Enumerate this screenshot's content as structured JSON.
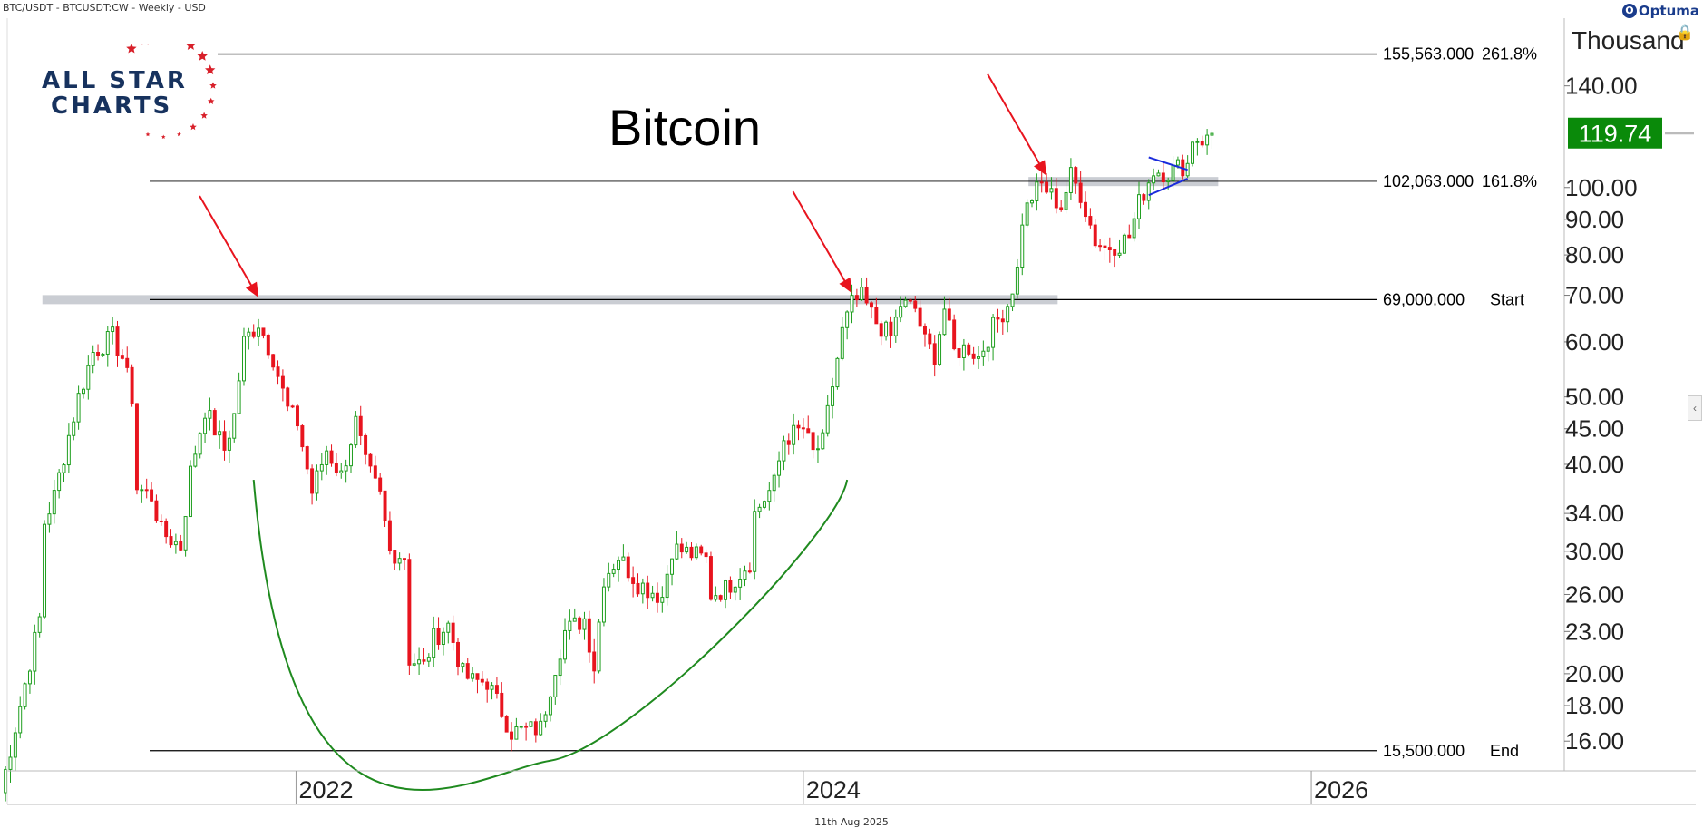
{
  "header": {
    "symbol_line": "BTC/USDT - BTCUSDT:CW - Weekly - USD"
  },
  "brand": {
    "name": "Optuma"
  },
  "footer": {
    "date": "11th Aug 2025"
  },
  "logo": {
    "line1": "ALL STAR",
    "line2": "CHARTS",
    "star_color": "#d8202a",
    "text_color": "#17325e"
  },
  "colors": {
    "up": "#1e9e1e",
    "down": "#e8141e",
    "price_box": "#0a8a0a",
    "arc": "#1f8a1f",
    "arrow": "#e8141e",
    "triangle": "#1a2bdc",
    "zone": "#b8bcc4"
  },
  "chart_data": {
    "type": "candlestick",
    "title": "Bitcoin",
    "scale": "log",
    "ylim": [
      14.5,
      170
    ],
    "y_unit_label": "Thousand",
    "yticks": [
      "140.00",
      "100.00",
      "90.00",
      "80.00",
      "70.00",
      "60.00",
      "50.00",
      "45.00",
      "40.00",
      "34.00",
      "30.00",
      "26.00",
      "23.00",
      "20.00",
      "18.00",
      "16.00"
    ],
    "xticks": [
      "2022",
      "2024",
      "2026"
    ],
    "xlim": [
      "2020-11-01",
      "2026-12-31"
    ],
    "last_price": "119.74",
    "levels": [
      {
        "value": 155.563,
        "price_label": "155,563.000",
        "label": "261.8%"
      },
      {
        "value": 102.063,
        "price_label": "102,063.000",
        "label": "161.8%"
      },
      {
        "value": 69.0,
        "price_label": "69,000.000",
        "label": "Start"
      },
      {
        "value": 15.5,
        "price_label": "15,500.000",
        "label": "End"
      }
    ],
    "resistance_zones": [
      {
        "from": "2021-01-01",
        "to": "2025-01-01",
        "value": 69.0
      },
      {
        "from": "2024-11-20",
        "to": "2025-08-20",
        "value": 102.0
      }
    ],
    "annotations": [
      {
        "type": "arrow",
        "x": "2021-11-08",
        "y": 69.5
      },
      {
        "type": "arrow",
        "x": "2024-03-11",
        "y": 70.5
      },
      {
        "type": "arrow",
        "x": "2024-12-16",
        "y": 104.0
      }
    ],
    "anchors": [
      [
        "2020-11-02",
        13.5
      ],
      [
        "2020-12-28",
        24
      ],
      [
        "2021-01-04",
        33
      ],
      [
        "2021-01-18",
        36
      ],
      [
        "2021-02-08",
        44
      ],
      [
        "2021-02-22",
        50
      ],
      [
        "2021-03-15",
        58
      ],
      [
        "2021-04-12",
        61
      ],
      [
        "2021-04-26",
        57
      ],
      [
        "2021-05-10",
        50
      ],
      [
        "2021-05-17",
        37
      ],
      [
        "2021-06-07",
        36
      ],
      [
        "2021-06-21",
        32
      ],
      [
        "2021-07-19",
        30.5
      ],
      [
        "2021-08-02",
        39
      ],
      [
        "2021-08-23",
        48
      ],
      [
        "2021-09-20",
        42
      ],
      [
        "2021-10-04",
        47
      ],
      [
        "2021-10-18",
        60
      ],
      [
        "2021-11-08",
        64
      ],
      [
        "2021-11-29",
        57
      ],
      [
        "2021-12-20",
        48
      ],
      [
        "2022-01-03",
        46
      ],
      [
        "2022-01-24",
        36.5
      ],
      [
        "2022-02-14",
        42
      ],
      [
        "2022-03-07",
        38.5
      ],
      [
        "2022-03-28",
        46
      ],
      [
        "2022-04-11",
        40
      ],
      [
        "2022-05-02",
        36
      ],
      [
        "2022-05-16",
        30
      ],
      [
        "2022-06-06",
        29.5
      ],
      [
        "2022-06-13",
        21
      ],
      [
        "2022-07-04",
        20.5
      ],
      [
        "2022-07-18",
        22.5
      ],
      [
        "2022-08-08",
        23.5
      ],
      [
        "2022-08-29",
        20
      ],
      [
        "2022-09-12",
        19.5
      ],
      [
        "2022-10-03",
        19.5
      ],
      [
        "2022-11-07",
        16.5
      ],
      [
        "2022-12-19",
        16.7
      ],
      [
        "2023-01-09",
        20.5
      ],
      [
        "2023-01-23",
        23
      ],
      [
        "2023-02-20",
        24
      ],
      [
        "2023-03-06",
        20.5
      ],
      [
        "2023-03-20",
        27.5
      ],
      [
        "2023-04-10",
        29.5
      ],
      [
        "2023-05-08",
        27
      ],
      [
        "2023-06-12",
        25.8
      ],
      [
        "2023-06-26",
        30.3
      ],
      [
        "2023-07-17",
        29.9
      ],
      [
        "2023-08-14",
        29.2
      ],
      [
        "2023-08-21",
        26
      ],
      [
        "2023-09-11",
        26.5
      ],
      [
        "2023-10-16",
        29
      ],
      [
        "2023-10-23",
        34
      ],
      [
        "2023-11-20",
        37.5
      ],
      [
        "2023-12-04",
        43.5
      ],
      [
        "2024-01-01",
        45
      ],
      [
        "2024-01-15",
        41.5
      ],
      [
        "2024-01-29",
        43
      ],
      [
        "2024-02-12",
        52
      ],
      [
        "2024-02-26",
        62
      ],
      [
        "2024-03-11",
        68
      ],
      [
        "2024-03-25",
        69.5
      ],
      [
        "2024-04-15",
        64
      ],
      [
        "2024-05-06",
        61
      ],
      [
        "2024-05-20",
        68
      ],
      [
        "2024-06-10",
        67
      ],
      [
        "2024-06-24",
        60
      ],
      [
        "2024-07-08",
        57.5
      ],
      [
        "2024-07-22",
        67
      ],
      [
        "2024-08-05",
        58
      ],
      [
        "2024-08-26",
        59
      ],
      [
        "2024-09-09",
        57
      ],
      [
        "2024-09-30",
        63
      ],
      [
        "2024-10-21",
        68
      ],
      [
        "2024-11-04",
        76
      ],
      [
        "2024-11-11",
        90
      ],
      [
        "2024-11-25",
        97
      ],
      [
        "2024-12-09",
        101
      ],
      [
        "2025-01-06",
        94
      ],
      [
        "2025-01-20",
        104
      ],
      [
        "2025-02-03",
        98
      ],
      [
        "2025-02-24",
        84
      ],
      [
        "2025-03-10",
        82
      ],
      [
        "2025-03-31",
        83
      ],
      [
        "2025-04-14",
        85
      ],
      [
        "2025-04-28",
        95
      ],
      [
        "2025-05-19",
        106
      ],
      [
        "2025-06-09",
        105
      ],
      [
        "2025-06-23",
        107
      ],
      [
        "2025-07-07",
        108
      ],
      [
        "2025-07-14",
        118
      ],
      [
        "2025-08-04",
        117
      ],
      [
        "2025-08-11",
        119.7
      ]
    ]
  }
}
